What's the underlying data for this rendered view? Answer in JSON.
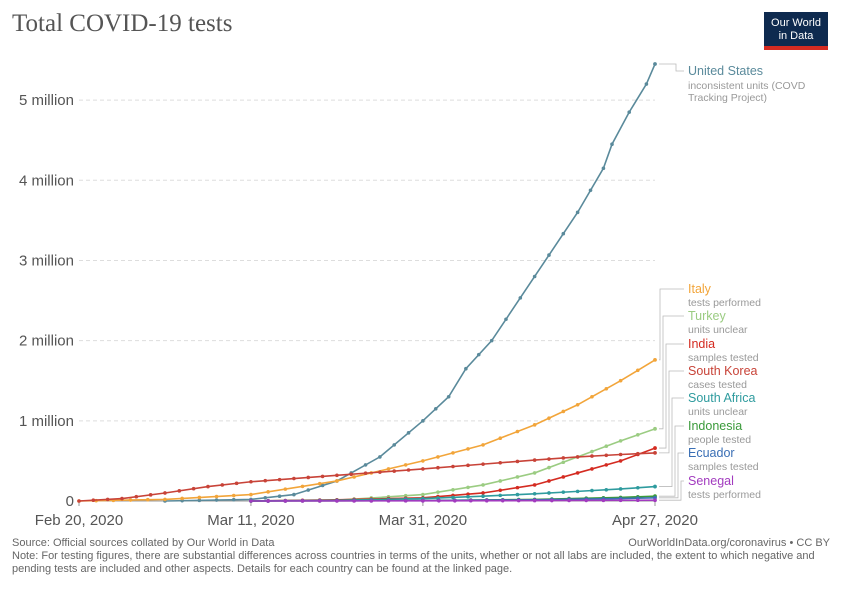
{
  "title": "Total COVID-19 tests",
  "logo": {
    "line1": "Our World",
    "line2": "in Data"
  },
  "footer": {
    "source": "Source: Official sources collated by Our World in Data",
    "url": "OurWorldInData.org/coronavirus • CC BY",
    "note": "Note: For testing figures, there are substantial differences across countries in terms of the units, whether or not all labs are included, the extent to which negative and pending tests are included and other aspects. Details for each country can be found at the linked page."
  },
  "chart_data": {
    "type": "line",
    "title": "Total COVID-19 tests",
    "x_start": "Feb 20, 2020",
    "x_end": "Apr 27, 2020",
    "x_ticks": [
      "Feb 20, 2020",
      "Mar 11, 2020",
      "Mar 31, 2020",
      "Apr 27, 2020"
    ],
    "y_ticks": [
      0,
      1000000,
      2000000,
      3000000,
      4000000,
      5000000
    ],
    "y_tick_labels": [
      "0",
      "1 million",
      "2 million",
      "3 million",
      "4 million",
      "5 million"
    ],
    "ylim": [
      0,
      5500000
    ],
    "grid": "horizontal dashed",
    "legend": "right, inline labels",
    "series": [
      {
        "name": "United States",
        "note": "inconsistent units (COVD Tracking Project)",
        "color": "#5a8a9b",
        "points": [
          [
            "Mar 1, 2020",
            0
          ],
          [
            "Mar 11, 2020",
            20000
          ],
          [
            "Mar 16, 2020",
            80000
          ],
          [
            "Mar 21, 2020",
            250000
          ],
          [
            "Mar 26, 2020",
            550000
          ],
          [
            "Mar 31, 2020",
            1000000
          ],
          [
            "Apr 3, 2020",
            1300000
          ],
          [
            "Apr 5, 2020",
            1650000
          ],
          [
            "Apr 8, 2020",
            2000000
          ],
          [
            "Apr 13, 2020",
            2800000
          ],
          [
            "Apr 18, 2020",
            3600000
          ],
          [
            "Apr 21, 2020",
            4150000
          ],
          [
            "Apr 22, 2020",
            4450000
          ],
          [
            "Apr 24, 2020",
            4850000
          ],
          [
            "Apr 26, 2020",
            5200000
          ],
          [
            "Apr 27, 2020",
            5450000
          ]
        ]
      },
      {
        "name": "Italy",
        "note": "tests performed",
        "color": "#f2a53a",
        "points": [
          [
            "Feb 20, 2020",
            0
          ],
          [
            "Mar 1, 2020",
            20000
          ],
          [
            "Mar 11, 2020",
            80000
          ],
          [
            "Mar 21, 2020",
            250000
          ],
          [
            "Mar 31, 2020",
            500000
          ],
          [
            "Apr 7, 2020",
            700000
          ],
          [
            "Apr 13, 2020",
            950000
          ],
          [
            "Apr 18, 2020",
            1200000
          ],
          [
            "Apr 23, 2020",
            1500000
          ],
          [
            "Apr 27, 2020",
            1760000
          ]
        ]
      },
      {
        "name": "Turkey",
        "note": "units unclear",
        "color": "#9bcc82",
        "points": [
          [
            "Mar 11, 2020",
            0
          ],
          [
            "Mar 21, 2020",
            10000
          ],
          [
            "Mar 31, 2020",
            80000
          ],
          [
            "Apr 7, 2020",
            200000
          ],
          [
            "Apr 13, 2020",
            350000
          ],
          [
            "Apr 18, 2020",
            550000
          ],
          [
            "Apr 23, 2020",
            750000
          ],
          [
            "Apr 27, 2020",
            900000
          ]
        ]
      },
      {
        "name": "India",
        "note": "samples tested",
        "color": "#d42b21",
        "points": [
          [
            "Mar 11, 2020",
            0
          ],
          [
            "Mar 21, 2020",
            15000
          ],
          [
            "Mar 31, 2020",
            40000
          ],
          [
            "Apr 7, 2020",
            100000
          ],
          [
            "Apr 13, 2020",
            200000
          ],
          [
            "Apr 18, 2020",
            350000
          ],
          [
            "Apr 23, 2020",
            500000
          ],
          [
            "Apr 27, 2020",
            660000
          ]
        ]
      },
      {
        "name": "South Korea",
        "note": "cases tested",
        "color": "#c84338",
        "points": [
          [
            "Feb 20, 2020",
            0
          ],
          [
            "Feb 25, 2020",
            30000
          ],
          [
            "Mar 1, 2020",
            100000
          ],
          [
            "Mar 6, 2020",
            180000
          ],
          [
            "Mar 11, 2020",
            240000
          ],
          [
            "Mar 16, 2020",
            280000
          ],
          [
            "Mar 21, 2020",
            320000
          ],
          [
            "Mar 26, 2020",
            360000
          ],
          [
            "Mar 31, 2020",
            400000
          ],
          [
            "Apr 7, 2020",
            460000
          ],
          [
            "Apr 13, 2020",
            510000
          ],
          [
            "Apr 18, 2020",
            550000
          ],
          [
            "Apr 23, 2020",
            580000
          ],
          [
            "Apr 27, 2020",
            600000
          ]
        ]
      },
      {
        "name": "South Africa",
        "note": "units unclear",
        "color": "#2e9b9e",
        "points": [
          [
            "Mar 11, 2020",
            0
          ],
          [
            "Mar 21, 2020",
            8000
          ],
          [
            "Mar 31, 2020",
            30000
          ],
          [
            "Apr 7, 2020",
            60000
          ],
          [
            "Apr 13, 2020",
            90000
          ],
          [
            "Apr 18, 2020",
            120000
          ],
          [
            "Apr 23, 2020",
            150000
          ],
          [
            "Apr 27, 2020",
            180000
          ]
        ]
      },
      {
        "name": "Indonesia",
        "note": "people tested",
        "color": "#3a9a3a",
        "points": [
          [
            "Mar 11, 2020",
            0
          ],
          [
            "Mar 31, 2020",
            5000
          ],
          [
            "Apr 13, 2020",
            20000
          ],
          [
            "Apr 23, 2020",
            45000
          ],
          [
            "Apr 27, 2020",
            60000
          ]
        ]
      },
      {
        "name": "Ecuador",
        "note": "samples tested",
        "color": "#3a6fb5",
        "points": [
          [
            "Mar 11, 2020",
            0
          ],
          [
            "Mar 31, 2020",
            5000
          ],
          [
            "Apr 13, 2020",
            15000
          ],
          [
            "Apr 23, 2020",
            30000
          ],
          [
            "Apr 27, 2020",
            40000
          ]
        ]
      },
      {
        "name": "Senegal",
        "note": "tests performed",
        "color": "#a23bbf",
        "points": [
          [
            "Mar 11, 2020",
            0
          ],
          [
            "Mar 31, 2020",
            2000
          ],
          [
            "Apr 13, 2020",
            5000
          ],
          [
            "Apr 27, 2020",
            10000
          ]
        ]
      }
    ]
  }
}
